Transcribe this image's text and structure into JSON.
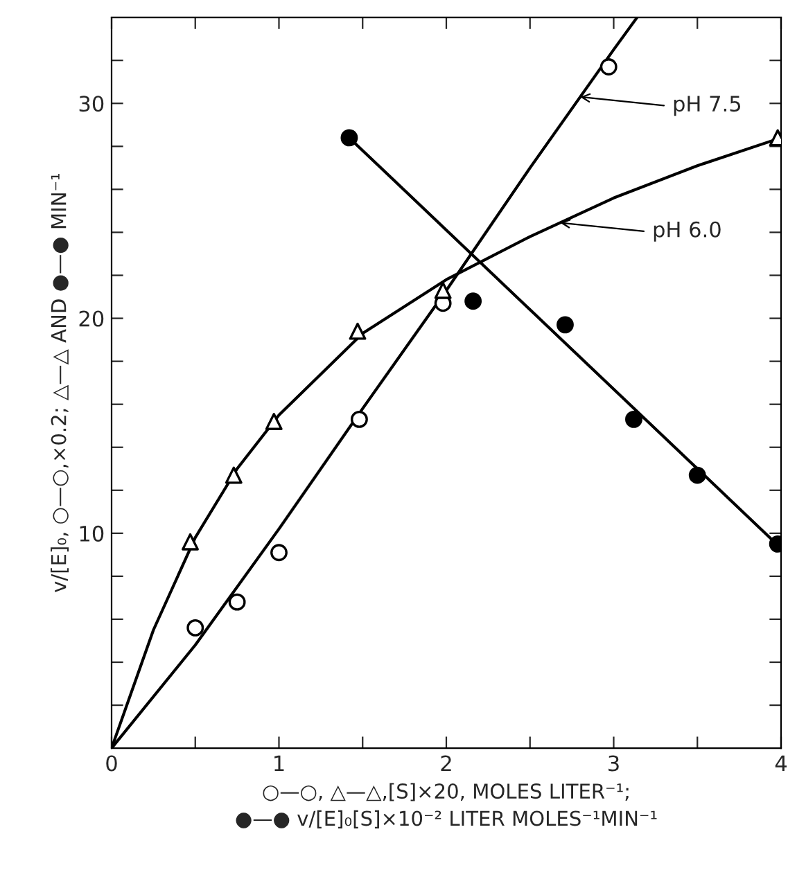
{
  "chart_data": {
    "type": "scatter",
    "xlabel": "○—○, △—△,[S]×20, MOLES LITER⁻¹;\n●—● v/[E]₀[S]×10⁻² LITER MOLES⁻¹MIN⁻¹",
    "ylabel": "v/[E]₀, ○—○,×0.2; △—△ AND ●—● MIN⁻¹",
    "xlim": [
      0,
      4
    ],
    "ylim": [
      0,
      34
    ],
    "xticks": [
      0,
      {
        "value": 0.5,
        "label": null
      },
      1,
      {
        "value": 1.5,
        "label": null
      },
      2,
      {
        "value": 2.5,
        "label": null
      },
      3,
      {
        "value": 3.5,
        "label": null
      },
      4
    ],
    "yticks": [
      {
        "value": 2,
        "label": null
      },
      {
        "value": 4,
        "label": null
      },
      {
        "value": 6,
        "label": null
      },
      {
        "value": 8,
        "label": null
      },
      10,
      {
        "value": 12,
        "label": null
      },
      {
        "value": 14,
        "label": null
      },
      {
        "value": 16,
        "label": null
      },
      {
        "value": 18,
        "label": null
      },
      20,
      {
        "value": 22,
        "label": null
      },
      {
        "value": 24,
        "label": null
      },
      {
        "value": 26,
        "label": null
      },
      {
        "value": 28,
        "label": null
      },
      30,
      {
        "value": 32,
        "label": null
      }
    ],
    "grid": false,
    "legend": false,
    "series": [
      {
        "marker": "circle",
        "color": "#ffffff",
        "x": [
          0.5,
          0.75,
          1.0,
          1.48,
          1.98,
          2.97
        ],
        "values": [
          5.6,
          6.8,
          9.1,
          15.3,
          20.7,
          31.7
        ]
      },
      {
        "marker": "triangle",
        "color": "#ffffff",
        "x": [
          0.47,
          0.73,
          0.97,
          1.47,
          1.98,
          3.98
        ],
        "values": [
          9.6,
          12.7,
          15.2,
          19.4,
          21.3,
          28.4
        ]
      },
      {
        "marker": "circle",
        "color": "#000000",
        "x": [
          1.42,
          2.16,
          2.71,
          3.12,
          3.5,
          3.98
        ],
        "values": [
          28.4,
          20.8,
          19.7,
          15.3,
          12.7,
          9.5
        ]
      },
      {
        "type": "line",
        "marker": "none",
        "line_style": "solid",
        "color": "#000000",
        "x": [
          0,
          0.5,
          1.0,
          1.5,
          2.0,
          2.5,
          3.0,
          3.14
        ],
        "values": [
          0,
          4.8,
          10.2,
          15.8,
          21.3,
          27.0,
          32.5,
          34
        ]
      },
      {
        "type": "line",
        "marker": "none",
        "line_style": "solid",
        "color": "#000000",
        "x": [
          0,
          0.25,
          0.5,
          0.75,
          1.0,
          1.5,
          2.0,
          2.5,
          3.0,
          3.5,
          4.0
        ],
        "values": [
          0,
          5.5,
          9.8,
          13.0,
          15.5,
          19.3,
          21.8,
          23.8,
          25.6,
          27.1,
          28.4
        ]
      },
      {
        "type": "line",
        "marker": "none",
        "line_style": "solid",
        "color": "#000000",
        "x": [
          1.42,
          4.0
        ],
        "values": [
          28.4,
          9.3
        ]
      }
    ],
    "annotations": [
      "pH 7.5",
      "pH 6.0"
    ]
  }
}
